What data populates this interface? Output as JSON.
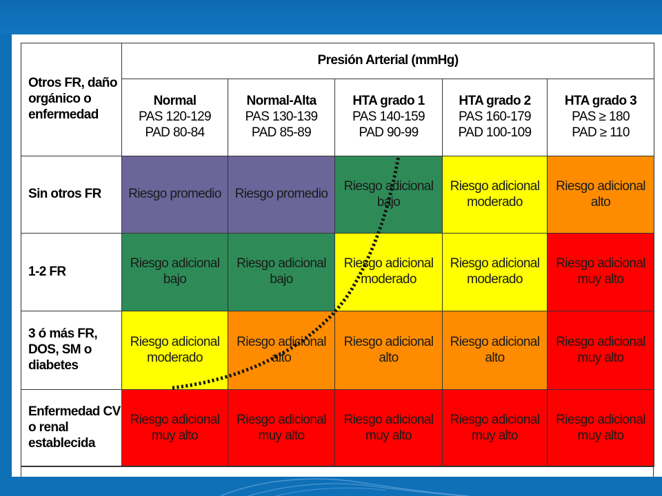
{
  "table": {
    "corner_label": "Otros FR, daño orgánico o enfermedad",
    "group_header": "Presión Arterial (mmHg)",
    "columns": [
      {
        "name": "Normal",
        "line2": "PAS 120-129",
        "line3": "PAD 80-84"
      },
      {
        "name": "Normal-Alta",
        "line2": "PAS 130-139",
        "line3": "PAD 85-89"
      },
      {
        "name": "HTA grado 1",
        "line2": "PAS 140-159",
        "line3": "PAD 90-99"
      },
      {
        "name": "HTA grado 2",
        "line2": "PAS 160-179",
        "line3": "PAD 100-109"
      },
      {
        "name": "HTA grado 3",
        "line2": "PAS ≥ 180",
        "line3": "PAD ≥ 110"
      }
    ],
    "rows": [
      {
        "label": "Sin otros FR",
        "cells": [
          "Riesgo promedio",
          "Riesgo promedio",
          "Riesgo adicional bajo",
          "Riesgo adicional moderado",
          "Riesgo adicional alto"
        ],
        "colors": [
          "purple",
          "purple",
          "green",
          "yellow",
          "orange"
        ]
      },
      {
        "label": "1-2 FR",
        "cells": [
          "Riesgo adicional bajo",
          "Riesgo adicional bajo",
          "Riesgo adicional moderado",
          "Riesgo adicional moderado",
          "Riesgo adicional muy alto"
        ],
        "colors": [
          "green",
          "green",
          "yellow",
          "yellow",
          "red"
        ]
      },
      {
        "label": "3 ó más FR, DOS, SM o diabetes",
        "cells": [
          "Riesgo adicional moderado",
          "Riesgo adicional alto",
          "Riesgo adicional alto",
          "Riesgo adicional alto",
          "Riesgo adicional muy alto"
        ],
        "colors": [
          "yellow",
          "orange",
          "orange",
          "orange",
          "red"
        ]
      },
      {
        "label": "Enfermedad CV o renal establecida",
        "cells": [
          "Riesgo adicional muy alto",
          "Riesgo adicional muy alto",
          "Riesgo adicional muy alto",
          "Riesgo adicional muy alto",
          "Riesgo adicional muy alto"
        ],
        "colors": [
          "red",
          "red",
          "red",
          "red",
          "red"
        ]
      }
    ]
  },
  "palette": {
    "purple": "#6b6699",
    "green": "#2e8b57",
    "yellow": "#ffff00",
    "orange": "#ff8c00",
    "red": "#ff0000",
    "background_blue": "#0f70b8"
  }
}
